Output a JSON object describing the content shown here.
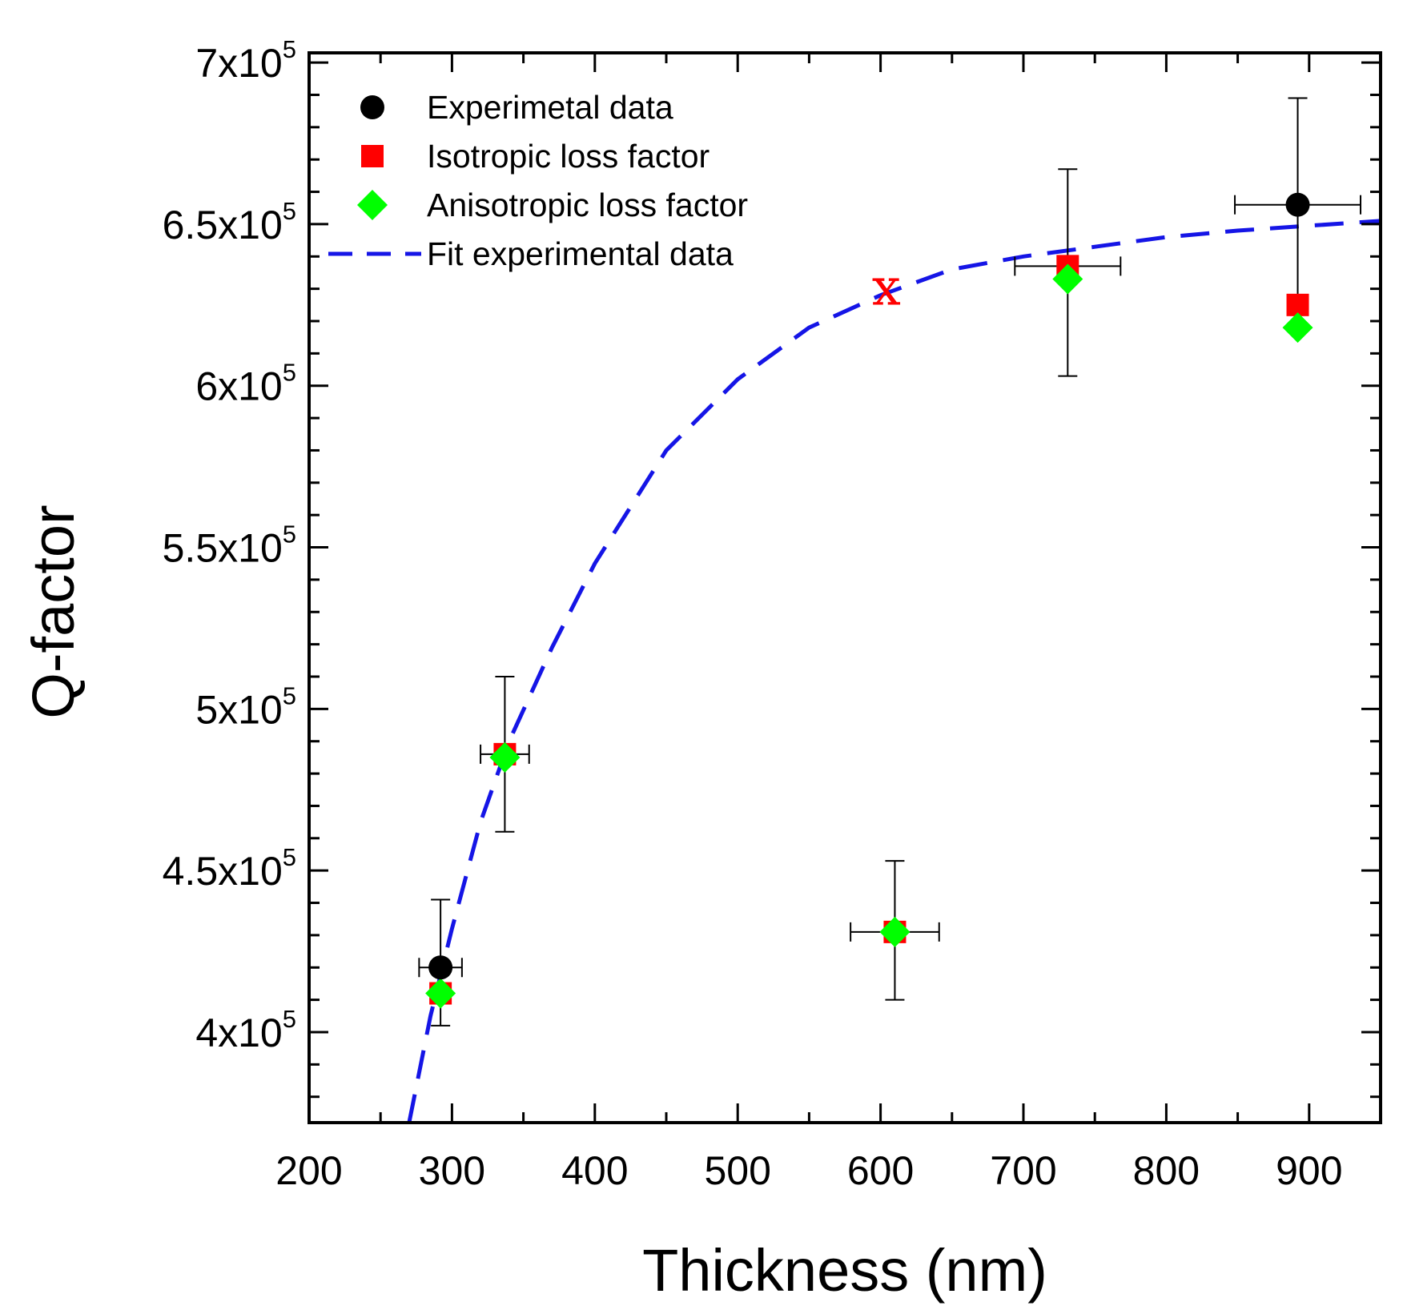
{
  "chart_data": {
    "type": "scatter",
    "xlabel": "Thickness (nm)",
    "ylabel": "Q-factor",
    "xlim": [
      200,
      950
    ],
    "ylim": [
      372000,
      703000
    ],
    "x_ticks": [
      {
        "value": 200,
        "label": "200"
      },
      {
        "value": 300,
        "label": "300"
      },
      {
        "value": 400,
        "label": "400"
      },
      {
        "value": 500,
        "label": "500"
      },
      {
        "value": 600,
        "label": "600"
      },
      {
        "value": 700,
        "label": "700"
      },
      {
        "value": 800,
        "label": "800"
      },
      {
        "value": 900,
        "label": "900"
      }
    ],
    "y_ticks": [
      {
        "value": 400000,
        "mantissa": "4x10",
        "exp": "5"
      },
      {
        "value": 450000,
        "mantissa": "4.5x10",
        "exp": "5"
      },
      {
        "value": 500000,
        "mantissa": "5x10",
        "exp": "5"
      },
      {
        "value": 550000,
        "mantissa": "5.5x10",
        "exp": "5"
      },
      {
        "value": 600000,
        "mantissa": "6x10",
        "exp": "5"
      },
      {
        "value": 650000,
        "mantissa": "6.5x10",
        "exp": "5"
      },
      {
        "value": 700000,
        "mantissa": "7x10",
        "exp": "5"
      }
    ],
    "series": [
      {
        "name": "Experimetal data",
        "marker": "circle",
        "color": "#000000",
        "points": [
          {
            "x": 292,
            "y": 420000
          },
          {
            "x": 892,
            "y": 656000
          }
        ]
      },
      {
        "name": "Isotropic loss factor",
        "marker": "square",
        "color": "#ff0000",
        "points": [
          {
            "x": 292,
            "y": 412000
          },
          {
            "x": 337,
            "y": 486000
          },
          {
            "x": 610,
            "y": 431000
          },
          {
            "x": 731,
            "y": 637000
          },
          {
            "x": 892,
            "y": 625000
          }
        ]
      },
      {
        "name": "Anisotropic loss factor",
        "marker": "diamond",
        "color": "#00ff00",
        "points": [
          {
            "x": 292,
            "y": 412000
          },
          {
            "x": 337,
            "y": 485000
          },
          {
            "x": 610,
            "y": 431000
          },
          {
            "x": 731,
            "y": 633000
          },
          {
            "x": 892,
            "y": 618000
          }
        ]
      },
      {
        "name": "Fit experimental data",
        "marker": "dashed-line",
        "color": "#1515e6",
        "points": [
          {
            "x": 270,
            "y": 372000
          },
          {
            "x": 285,
            "y": 405000
          },
          {
            "x": 300,
            "y": 432000
          },
          {
            "x": 320,
            "y": 465000
          },
          {
            "x": 340,
            "y": 490000
          },
          {
            "x": 370,
            "y": 519000
          },
          {
            "x": 400,
            "y": 545000
          },
          {
            "x": 450,
            "y": 580000
          },
          {
            "x": 500,
            "y": 602000
          },
          {
            "x": 550,
            "y": 618000
          },
          {
            "x": 600,
            "y": 628000
          },
          {
            "x": 650,
            "y": 636000
          },
          {
            "x": 700,
            "y": 640000
          },
          {
            "x": 750,
            "y": 643000
          },
          {
            "x": 800,
            "y": 646000
          },
          {
            "x": 850,
            "y": 648000
          },
          {
            "x": 900,
            "y": 649500
          },
          {
            "x": 950,
            "y": 651000
          }
        ]
      }
    ],
    "error_bars": [
      {
        "x": 292,
        "y": 420000,
        "xerr": 15,
        "yerr_low": 402000,
        "yerr_high": 441000
      },
      {
        "x": 337,
        "y": 486000,
        "xerr": 17,
        "yerr_low": 462000,
        "yerr_high": 510000
      },
      {
        "x": 610,
        "y": 431000,
        "xerr": 31,
        "yerr_low": 410000,
        "yerr_high": 453000
      },
      {
        "x": 731,
        "y": 637000,
        "xerr": 37,
        "yerr_low": 603000,
        "yerr_high": 667000
      },
      {
        "x": 892,
        "y": 656000,
        "xerr": 44,
        "yerr_low": 625000,
        "yerr_high": 689000
      }
    ],
    "annotations": [
      {
        "text": "x",
        "x": 604,
        "y": 631000,
        "color": "#ff0000"
      }
    ],
    "legend_placement": "top-left"
  }
}
